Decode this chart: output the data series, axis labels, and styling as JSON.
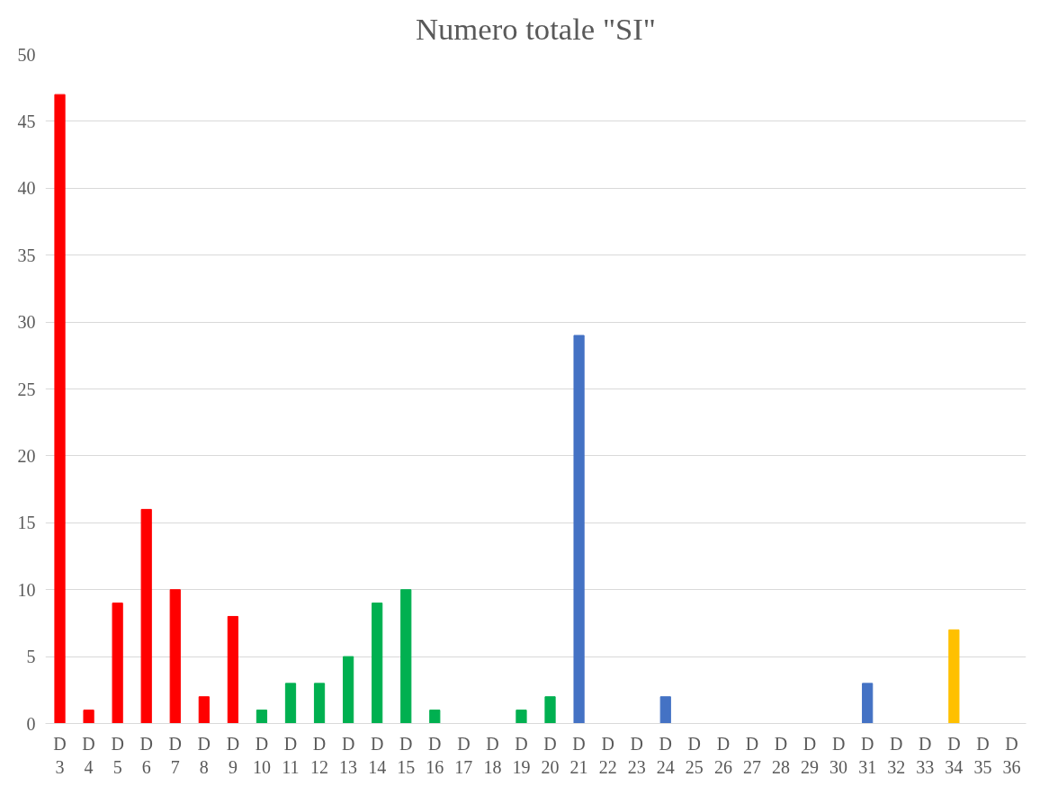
{
  "chart_data": {
    "type": "bar",
    "title": "Numero totale \"SI\"",
    "categories": [
      "D 3",
      "D 4",
      "D 5",
      "D 6",
      "D 7",
      "D 8",
      "D 9",
      "D 10",
      "D 11",
      "D 12",
      "D 13",
      "D 14",
      "D 15",
      "D 16",
      "D 17",
      "D 18",
      "D 19",
      "D 20",
      "D 21",
      "D 22",
      "D 23",
      "D 24",
      "D 25",
      "D 26",
      "D 27",
      "D 28",
      "D 29",
      "D 30",
      "D 31",
      "D 32",
      "D 33",
      "D 34",
      "D 35",
      "D 36"
    ],
    "values": [
      47,
      1,
      9,
      16,
      10,
      2,
      8,
      1,
      3,
      3,
      5,
      9,
      10,
      1,
      0,
      0,
      1,
      2,
      29,
      0,
      0,
      2,
      0,
      0,
      0,
      0,
      0,
      0,
      3,
      0,
      0,
      7,
      0,
      0
    ],
    "colors": [
      "#ff0000",
      "#ff0000",
      "#ff0000",
      "#ff0000",
      "#ff0000",
      "#ff0000",
      "#ff0000",
      "#00b050",
      "#00b050",
      "#00b050",
      "#00b050",
      "#00b050",
      "#00b050",
      "#00b050",
      "#00b050",
      "#00b050",
      "#00b050",
      "#00b050",
      "#4472c4",
      "#4472c4",
      "#4472c4",
      "#4472c4",
      "#4472c4",
      "#4472c4",
      "#4472c4",
      "#4472c4",
      "#4472c4",
      "#4472c4",
      "#4472c4",
      "#4472c4",
      "#4472c4",
      "#ffc000",
      "#ffc000",
      "#ffc000"
    ],
    "ylim": [
      0,
      50
    ],
    "yticks": [
      0,
      5,
      10,
      15,
      20,
      25,
      30,
      35,
      40,
      45,
      50
    ],
    "grid": "y"
  }
}
